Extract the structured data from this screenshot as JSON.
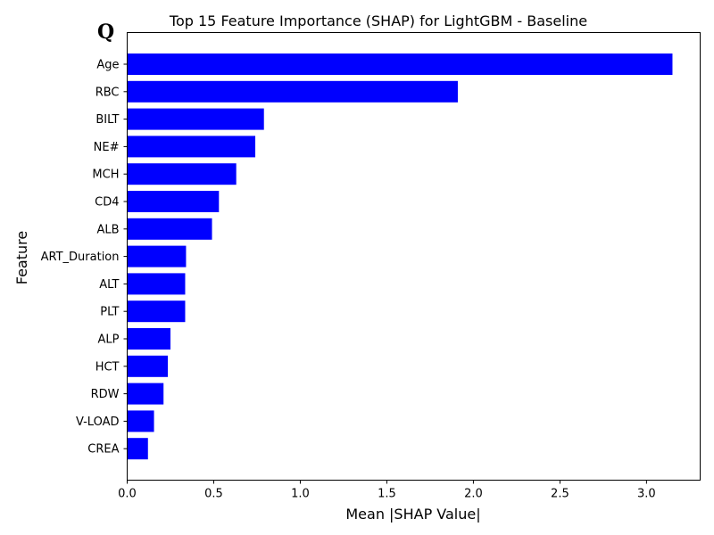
{
  "panel_label": "Q",
  "chart_data": {
    "type": "bar",
    "orientation": "horizontal",
    "title": "Top 15 Feature Importance (SHAP) for LightGBM - Baseline",
    "xlabel": "Mean |SHAP Value|",
    "ylabel": "Feature",
    "xlim": [
      0,
      3.31
    ],
    "xticks": [
      "0.0",
      "0.5",
      "1.0",
      "1.5",
      "2.0",
      "2.5",
      "3.0"
    ],
    "grid": false,
    "bar_color": "#0000ff",
    "categories": [
      "Age",
      "RBC",
      "BILT",
      "NE#",
      "MCH",
      "CD4",
      "ALB",
      "ART_Duration",
      "ALT",
      "PLT",
      "ALP",
      "HCT",
      "RDW",
      "V-LOAD",
      "CREA"
    ],
    "values": [
      3.15,
      1.91,
      0.79,
      0.74,
      0.63,
      0.53,
      0.49,
      0.34,
      0.335,
      0.335,
      0.25,
      0.235,
      0.21,
      0.155,
      0.12
    ]
  }
}
